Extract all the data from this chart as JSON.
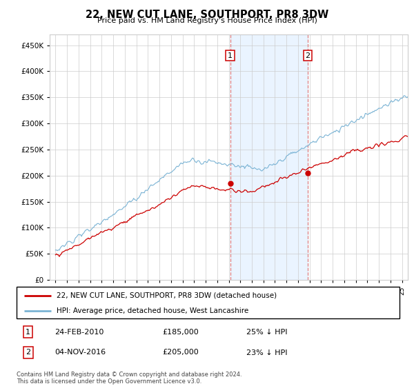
{
  "title": "22, NEW CUT LANE, SOUTHPORT, PR8 3DW",
  "subtitle": "Price paid vs. HM Land Registry's House Price Index (HPI)",
  "ylim": [
    0,
    470000
  ],
  "xlim_start": 1994.5,
  "xlim_end": 2025.5,
  "sale1": {
    "date_num": 2010.13,
    "price": 185000,
    "label": "1",
    "date_str": "24-FEB-2010",
    "pct": "25% ↓ HPI"
  },
  "sale2": {
    "date_num": 2016.84,
    "price": 205000,
    "label": "2",
    "date_str": "04-NOV-2016",
    "pct": "23% ↓ HPI"
  },
  "hpi_color": "#7ab3d4",
  "price_color": "#cc0000",
  "shading_color": "#ddeeff",
  "grid_color": "#cccccc",
  "legend_line1": "22, NEW CUT LANE, SOUTHPORT, PR8 3DW (detached house)",
  "legend_line2": "HPI: Average price, detached house, West Lancashire",
  "footer": "Contains HM Land Registry data © Crown copyright and database right 2024.\nThis data is licensed under the Open Government Licence v3.0.",
  "table_rows": [
    {
      "num": "1",
      "date": "24-FEB-2010",
      "price": "£185,000",
      "pct": "25% ↓ HPI"
    },
    {
      "num": "2",
      "date": "04-NOV-2016",
      "price": "£205,000",
      "pct": "23% ↓ HPI"
    }
  ]
}
